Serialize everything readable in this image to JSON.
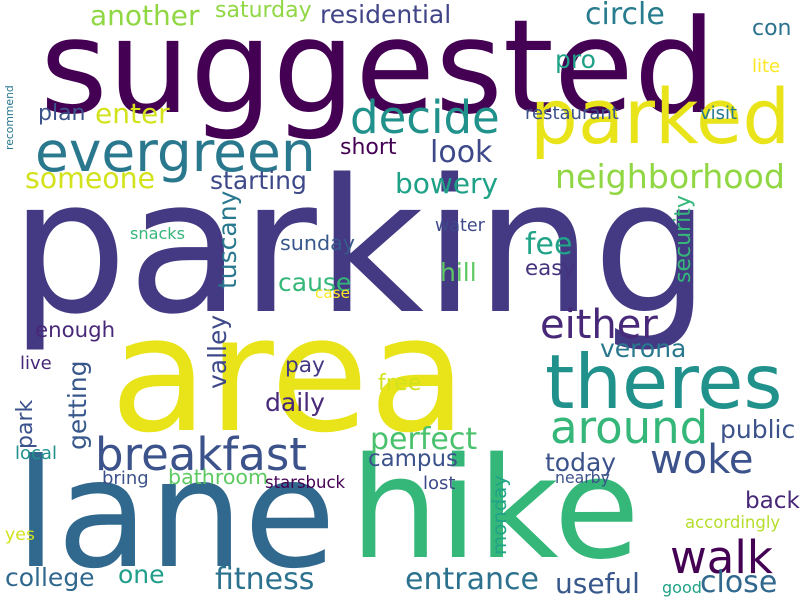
{
  "words": [
    {
      "text": "parking",
      "color": "#443983"
    },
    {
      "text": "area",
      "color": "#e8e419"
    },
    {
      "text": "suggested",
      "color": "#440154"
    },
    {
      "text": "hike",
      "color": "#35b779"
    },
    {
      "text": "lane",
      "color": "#31688e"
    },
    {
      "text": "parked",
      "color": "#e8e419"
    },
    {
      "text": "theres",
      "color": "#21918c"
    },
    {
      "text": "evergreen",
      "color": "#2a788e"
    },
    {
      "text": "breakfast",
      "color": "#3b528b"
    },
    {
      "text": "walk",
      "color": "#440154"
    },
    {
      "text": "around",
      "color": "#35b779"
    },
    {
      "text": "woke",
      "color": "#3b528b"
    },
    {
      "text": "either",
      "color": "#482878"
    },
    {
      "text": "decide",
      "color": "#21918c"
    },
    {
      "text": "neighborhood",
      "color": "#90d743"
    },
    {
      "text": "residential",
      "color": "#414487"
    },
    {
      "text": "circle",
      "color": "#287c8e"
    },
    {
      "text": "someone",
      "color": "#d2e21b"
    },
    {
      "text": "starting",
      "color": "#3e4989"
    },
    {
      "text": "look",
      "color": "#3e4989"
    },
    {
      "text": "bowery",
      "color": "#1fa187"
    },
    {
      "text": "another",
      "color": "#90d743"
    },
    {
      "text": "enter",
      "color": "#d2e21b"
    },
    {
      "text": "recommend",
      "color": "#2a788e"
    },
    {
      "text": "getting",
      "color": "#38588c"
    },
    {
      "text": "tuscany",
      "color": "#2a788e"
    },
    {
      "text": "valley",
      "color": "#3e4989"
    },
    {
      "text": "perfect",
      "color": "#4ac16d"
    },
    {
      "text": "fitness",
      "color": "#2c728e"
    },
    {
      "text": "entrance",
      "color": "#2c728e"
    },
    {
      "text": "college",
      "color": "#31688e"
    },
    {
      "text": "one",
      "color": "#1f9e89"
    },
    {
      "text": "back",
      "color": "#482878"
    },
    {
      "text": "close",
      "color": "#31688e"
    },
    {
      "text": "useful",
      "color": "#38588c"
    },
    {
      "text": "campus",
      "color": "#3b528b"
    },
    {
      "text": "today",
      "color": "#3b528b"
    },
    {
      "text": "daily",
      "color": "#482878"
    },
    {
      "text": "verona",
      "color": "#2a788e"
    },
    {
      "text": "monday",
      "color": "#20a386"
    },
    {
      "text": "bathroom",
      "color": "#5ec962"
    },
    {
      "text": "public",
      "color": "#3b528b"
    },
    {
      "text": "fee",
      "color": "#20a386"
    },
    {
      "text": "easy",
      "color": "#46337e"
    },
    {
      "text": "cause",
      "color": "#35b779"
    },
    {
      "text": "sunday",
      "color": "#38588c"
    },
    {
      "text": "hill",
      "color": "#5ec962"
    },
    {
      "text": "security",
      "color": "#35b779"
    },
    {
      "text": "pay",
      "color": "#443983"
    },
    {
      "text": "free",
      "color": "#d2e21b"
    },
    {
      "text": "park",
      "color": "#3b528b"
    },
    {
      "text": "enough",
      "color": "#482878"
    },
    {
      "text": "plan",
      "color": "#3b528b"
    },
    {
      "text": "short",
      "color": "#440154"
    },
    {
      "text": "saturday",
      "color": "#90d743"
    },
    {
      "text": "pro",
      "color": "#1fa187"
    },
    {
      "text": "con",
      "color": "#2c728e"
    },
    {
      "text": "lite",
      "color": "#fde725"
    },
    {
      "text": "restaurant",
      "color": "#3b528b"
    },
    {
      "text": "visit",
      "color": "#2a788e"
    },
    {
      "text": "snacks",
      "color": "#35b779"
    },
    {
      "text": "water",
      "color": "#3e4989"
    },
    {
      "text": "case",
      "color": "#fde725"
    },
    {
      "text": "live",
      "color": "#482878"
    },
    {
      "text": "local",
      "color": "#21918c"
    },
    {
      "text": "bring",
      "color": "#3b528b"
    },
    {
      "text": "starsbuck",
      "color": "#440154"
    },
    {
      "text": "lost",
      "color": "#3e4989"
    },
    {
      "text": "nearby",
      "color": "#3b528b"
    },
    {
      "text": "accordingly",
      "color": "#b5de2b"
    },
    {
      "text": "good",
      "color": "#20a386"
    },
    {
      "text": "yes",
      "color": "#d2e21b"
    }
  ]
}
